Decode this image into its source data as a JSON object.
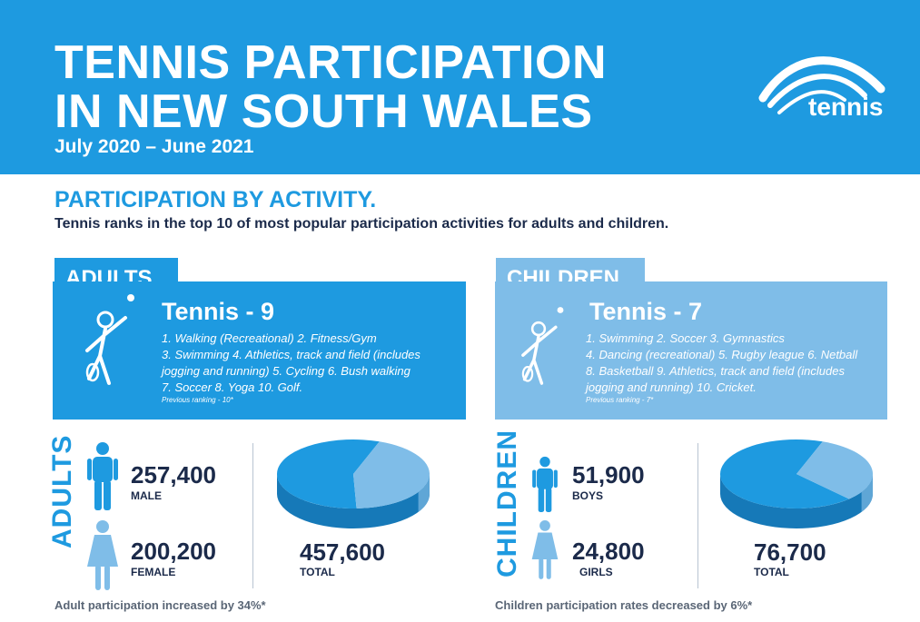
{
  "header": {
    "title_line1": "TENNIS PARTICIPATION",
    "title_line2": "IN NEW SOUTH WALES",
    "subtitle": "July 2020 – June 2021",
    "logo_text": "tennis"
  },
  "section": {
    "heading": "PARTICIPATION BY ACTIVITY.",
    "subheading": "Tennis ranks in the top 10 of most popular participation activities for adults and children."
  },
  "adults_panel": {
    "tab": "ADULTS",
    "title": "Tennis - 9",
    "lines": [
      "1. Walking (Recreational) 2. Fitness/Gym",
      "3. Swimming 4. Athletics, track and field (includes",
      "jogging and running) 5. Cycling 6. Bush walking",
      "7. Soccer 8. Yoga 10. Golf."
    ],
    "previous": "Previous ranking - 10*"
  },
  "children_panel": {
    "tab": "CHILDREN",
    "title": "Tennis - 7",
    "lines": [
      "1. Swimming 2. Soccer 3. Gymnastics",
      "4. Dancing (recreational) 5. Rugby league 6. Netball",
      "8. Basketball 9. Athletics, track and field (includes",
      "jogging and running) 10. Cricket."
    ],
    "previous": "Previous ranking - 7*"
  },
  "adults_stats": {
    "vertical_label": "ADULTS",
    "male_value": "257,400",
    "male_label": "MALE",
    "female_value": "200,200",
    "female_label": "FEMALE",
    "total_value": "457,600",
    "total_label": "TOTAL",
    "footnote": "Adult participation increased by 34%*"
  },
  "children_stats": {
    "vertical_label": "CHILDREN",
    "boys_value": "51,900",
    "boys_label": "BOYS",
    "girls_value": "24,800",
    "girls_label": "GIRLS",
    "total_value": "76,700",
    "total_label": "TOTAL",
    "footnote": "Children participation rates decreased by 6%*"
  },
  "colors": {
    "brand_blue": "#1e9ae0",
    "light_blue": "#7fbde8",
    "navy": "#1b2a4a"
  },
  "icons": [
    "tennis-logo-icon",
    "tennis-player-icon",
    "male-person-icon",
    "female-person-icon"
  ],
  "chart_data": [
    {
      "type": "pie",
      "categories": [
        "MALE",
        "FEMALE"
      ],
      "values": [
        257400,
        200200
      ]
    },
    {
      "type": "pie",
      "categories": [
        "BOYS",
        "GIRLS"
      ],
      "values": [
        51900,
        24800
      ]
    }
  ]
}
